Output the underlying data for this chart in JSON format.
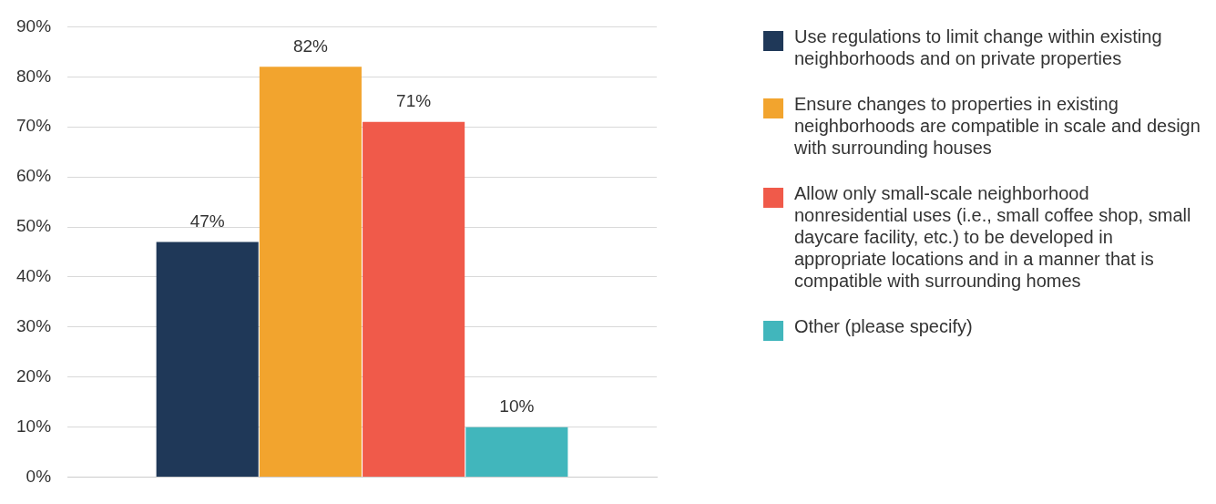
{
  "chart_data": {
    "type": "bar",
    "categories": [
      null
    ],
    "series": [
      {
        "name": "Use regulations to limit change within existing neighborhoods and on private properties",
        "color": "#1f3858",
        "values": [
          47
        ]
      },
      {
        "name": "Ensure changes to properties in existing neighborhoods are compatible in scale and design with surrounding houses",
        "color": "#f2a42e",
        "values": [
          82
        ]
      },
      {
        "name": "Allow only small-scale neighborhood nonresidential uses (i.e., small coffee shop, small daycare facility, etc.) to be developed in appropriate locations and in a manner that is compatible with surrounding homes",
        "color": "#f05a4a",
        "values": [
          71
        ]
      },
      {
        "name": "Other (please specify)",
        "color": "#41b6bc",
        "values": [
          10
        ]
      }
    ],
    "ylim": [
      0,
      90
    ],
    "yticks": [
      {
        "value": 0,
        "label": "0%"
      },
      {
        "value": 10,
        "label": "10%"
      },
      {
        "value": 20,
        "label": "20%"
      },
      {
        "value": 30,
        "label": "30%"
      },
      {
        "value": 40,
        "label": "40%"
      },
      {
        "value": 50,
        "label": "50%"
      },
      {
        "value": 60,
        "label": "60%"
      },
      {
        "value": 70,
        "label": "70%"
      },
      {
        "value": 80,
        "label": "80%"
      },
      {
        "value": 90,
        "label": "90%"
      }
    ],
    "grid": "y",
    "legend": "right",
    "tick_labels": "y",
    "value_labels": [
      "47%",
      "82%",
      "71%",
      "10%"
    ]
  }
}
